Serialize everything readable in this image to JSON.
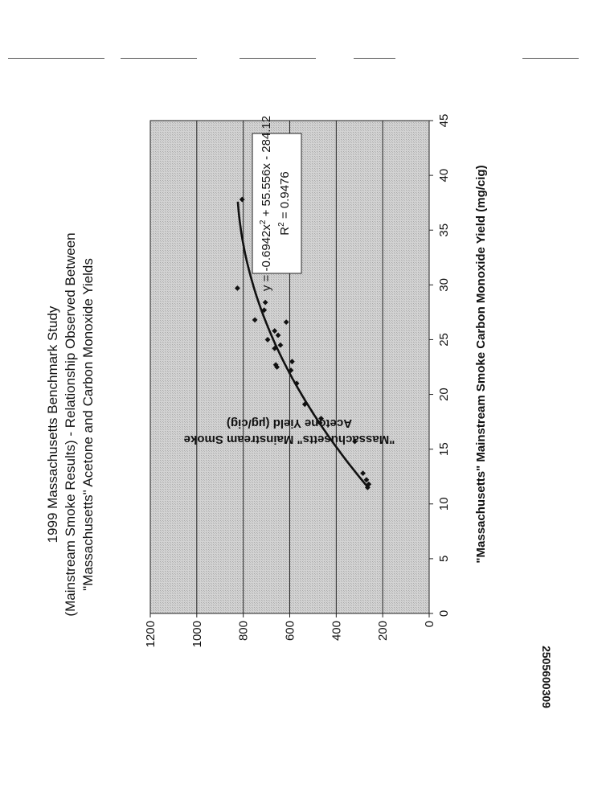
{
  "chart_data": {
    "type": "scatter",
    "title_lines": [
      "1999 Massachusetts Benchmark Study",
      "(Mainstream Smoke Results) - Relationship Observed Between",
      "\"Massachusetts\" Acetone and Carbon Monoxide Yields"
    ],
    "xlabel": "\"Massachusetts\" Mainstream Smoke Carbon Monoxide Yield (mg/cig)",
    "ylabel_lines": [
      "\"Massachusetts\" Mainstream Smoke",
      "Acetone Yield (µg/cig)"
    ],
    "xlim": [
      0,
      45
    ],
    "ylim": [
      0,
      1200
    ],
    "x_ticks": [
      "0",
      "5",
      "10",
      "15",
      "20",
      "25",
      "30",
      "35",
      "40",
      "45"
    ],
    "y_ticks": [
      "0",
      "200",
      "400",
      "600",
      "800",
      "1000",
      "1200"
    ],
    "grid": "horizontal",
    "points": [
      {
        "x": 11.5,
        "y": 265
      },
      {
        "x": 11.8,
        "y": 260
      },
      {
        "x": 12.2,
        "y": 270
      },
      {
        "x": 12.8,
        "y": 285
      },
      {
        "x": 15.7,
        "y": 320
      },
      {
        "x": 17.4,
        "y": 470
      },
      {
        "x": 17.8,
        "y": 465
      },
      {
        "x": 19.1,
        "y": 535
      },
      {
        "x": 21.0,
        "y": 570
      },
      {
        "x": 22.2,
        "y": 595
      },
      {
        "x": 22.5,
        "y": 655
      },
      {
        "x": 22.7,
        "y": 660
      },
      {
        "x": 23.0,
        "y": 590
      },
      {
        "x": 24.2,
        "y": 665
      },
      {
        "x": 24.5,
        "y": 640
      },
      {
        "x": 25.0,
        "y": 695
      },
      {
        "x": 25.4,
        "y": 650
      },
      {
        "x": 25.8,
        "y": 665
      },
      {
        "x": 26.6,
        "y": 615
      },
      {
        "x": 26.8,
        "y": 750
      },
      {
        "x": 27.7,
        "y": 710
      },
      {
        "x": 28.4,
        "y": 705
      },
      {
        "x": 29.7,
        "y": 825
      },
      {
        "x": 37.8,
        "y": 805
      }
    ],
    "trendline": {
      "a": -0.6942,
      "b": 55.556,
      "c": -284.12,
      "x_from": 11.5,
      "x_to": 37.6
    },
    "equation_text": "y = -0.6942x² + 55.556x - 284.12",
    "r2_text": "R² = 0.9476"
  },
  "document_number": "2505600309",
  "colors": {
    "plot_fill": "#cfcfcf",
    "gridline": "#222222",
    "marker": "#111111",
    "trendline": "#111111"
  }
}
